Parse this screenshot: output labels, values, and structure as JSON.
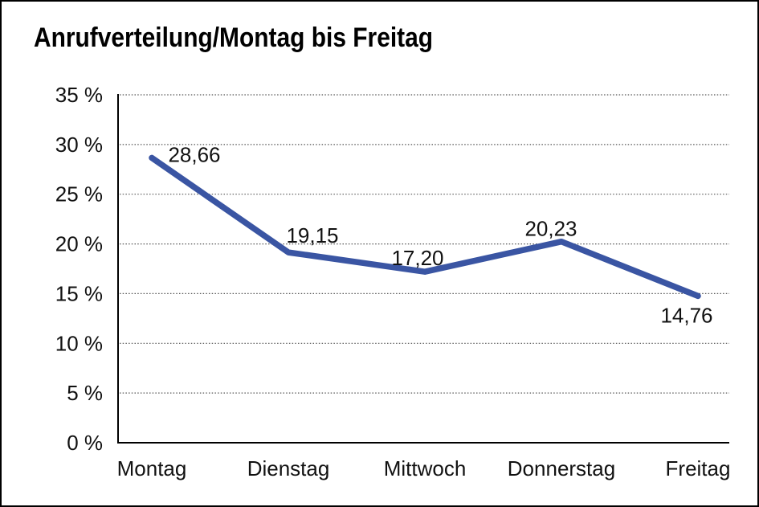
{
  "frame": {
    "background": "#ffffff",
    "border_color": "#000000"
  },
  "title": "Anrufverteilung/Montag bis Freitag",
  "chart_data": {
    "type": "line",
    "title": "Anrufverteilung/Montag bis Freitag",
    "categories": [
      "Montag",
      "Dienstag",
      "Mittwoch",
      "Donnerstag",
      "Freitag"
    ],
    "series": [
      {
        "name": "Anrufverteilung",
        "values": [
          28.66,
          19.15,
          17.2,
          20.23,
          14.76
        ],
        "color": "#3A55A3"
      }
    ],
    "point_labels": [
      "28,66",
      "19,15",
      "17,20",
      "20,23",
      "14,76"
    ],
    "xlabel": "",
    "ylabel": "",
    "ylim": [
      0,
      35
    ],
    "ytick_step": 5,
    "ytick_labels": [
      "0 %",
      "5 %",
      "10 %",
      "15 %",
      "20 %",
      "25 %",
      "30 %",
      "35 %"
    ],
    "grid": "horizontal dotted gridlines at 5 % steps, solid axis line at 0 %",
    "legend_position": "none",
    "axis_color": "#000000",
    "gridline_color": "#555555",
    "label_color": "#111111"
  }
}
